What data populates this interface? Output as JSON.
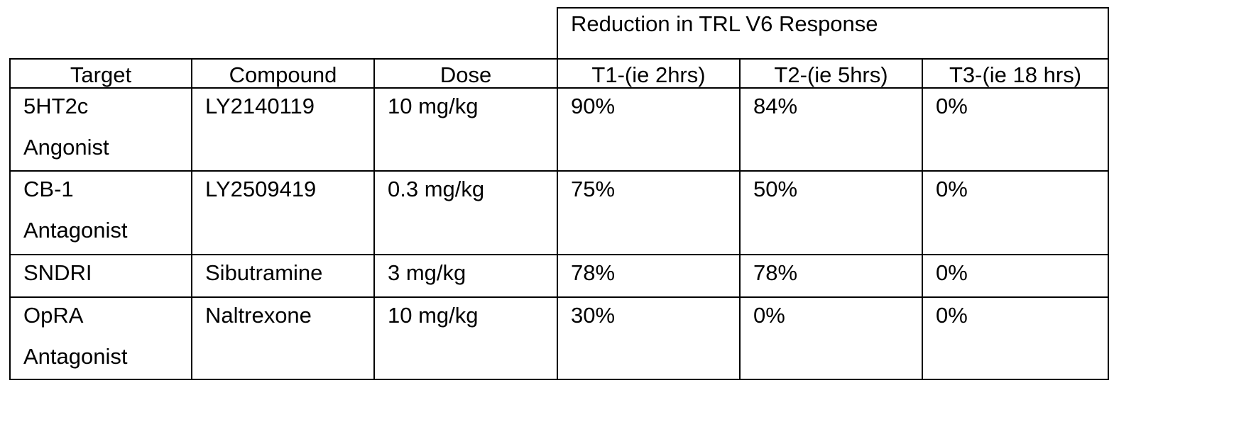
{
  "table": {
    "group_header": "Reduction in TRL V6 Response",
    "columns": [
      "Target",
      "Compound",
      "Dose",
      "T1-(ie 2hrs)",
      "T2-(ie 5hrs)",
      "T3-(ie 18 hrs)"
    ],
    "rows": [
      {
        "target": [
          "5HT2c",
          "Angonist"
        ],
        "compound": "LY2140119",
        "dose": "10 mg/kg",
        "t1": "90%",
        "t2": "84%",
        "t3": "0%"
      },
      {
        "target": [
          "CB-1",
          "Antagonist"
        ],
        "compound": "LY2509419",
        "dose": "0.3 mg/kg",
        "t1": "75%",
        "t2": "50%",
        "t3": "0%"
      },
      {
        "target": [
          "SNDRI"
        ],
        "compound": "Sibutramine",
        "dose": "3 mg/kg",
        "t1": "78%",
        "t2": "78%",
        "t3": "0%"
      },
      {
        "target": [
          "OpRA",
          "Antagonist"
        ],
        "compound": "Naltrexone",
        "dose": "10 mg/kg",
        "t1": "30%",
        "t2": "0%",
        "t3": "0%"
      }
    ]
  }
}
